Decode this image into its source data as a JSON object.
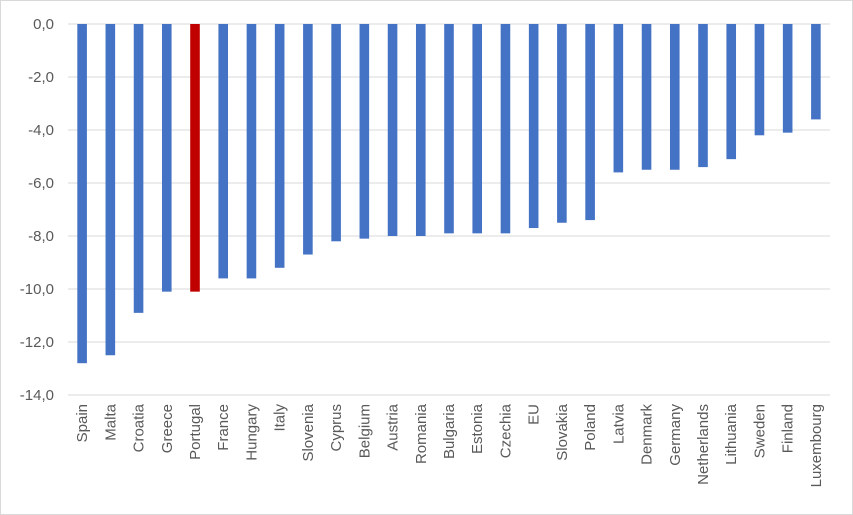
{
  "chart_data": {
    "type": "bar",
    "title": "",
    "xlabel": "",
    "ylabel": "",
    "ylim": [
      -14,
      0
    ],
    "yticks": [
      0,
      -2,
      -4,
      -6,
      -8,
      -10,
      -12,
      -14
    ],
    "ytick_labels": [
      "0,0",
      "-2,0",
      "-4,0",
      "-6,0",
      "-8,0",
      "-10,0",
      "-12,0",
      "-14,0"
    ],
    "grid": true,
    "categories": [
      "Spain",
      "Malta",
      "Croatia",
      "Greece",
      "Portugal",
      "France",
      "Hungary",
      "Italy",
      "Slovenia",
      "Cyprus",
      "Belgium",
      "Austria",
      "Romania",
      "Bulgaria",
      "Estonia",
      "Czechia",
      "EU",
      "Slovakia",
      "Poland",
      "Latvia",
      "Denmark",
      "Germany",
      "Netherlands",
      "Lithuania",
      "Sweden",
      "Finland",
      "Luxembourg"
    ],
    "values": [
      -12.8,
      -12.5,
      -10.9,
      -10.1,
      -10.1,
      -9.6,
      -9.6,
      -9.2,
      -8.7,
      -8.2,
      -8.1,
      -8.0,
      -8.0,
      -7.9,
      -7.9,
      -7.9,
      -7.7,
      -7.5,
      -7.4,
      -5.6,
      -5.5,
      -5.5,
      -5.4,
      -5.1,
      -4.2,
      -4.1,
      -3.6
    ],
    "colors": {
      "default": "#4472c4",
      "highlight": "#c00000",
      "grid": "#d9d9d9",
      "axis": "#595959"
    },
    "highlight_category": "Portugal"
  }
}
